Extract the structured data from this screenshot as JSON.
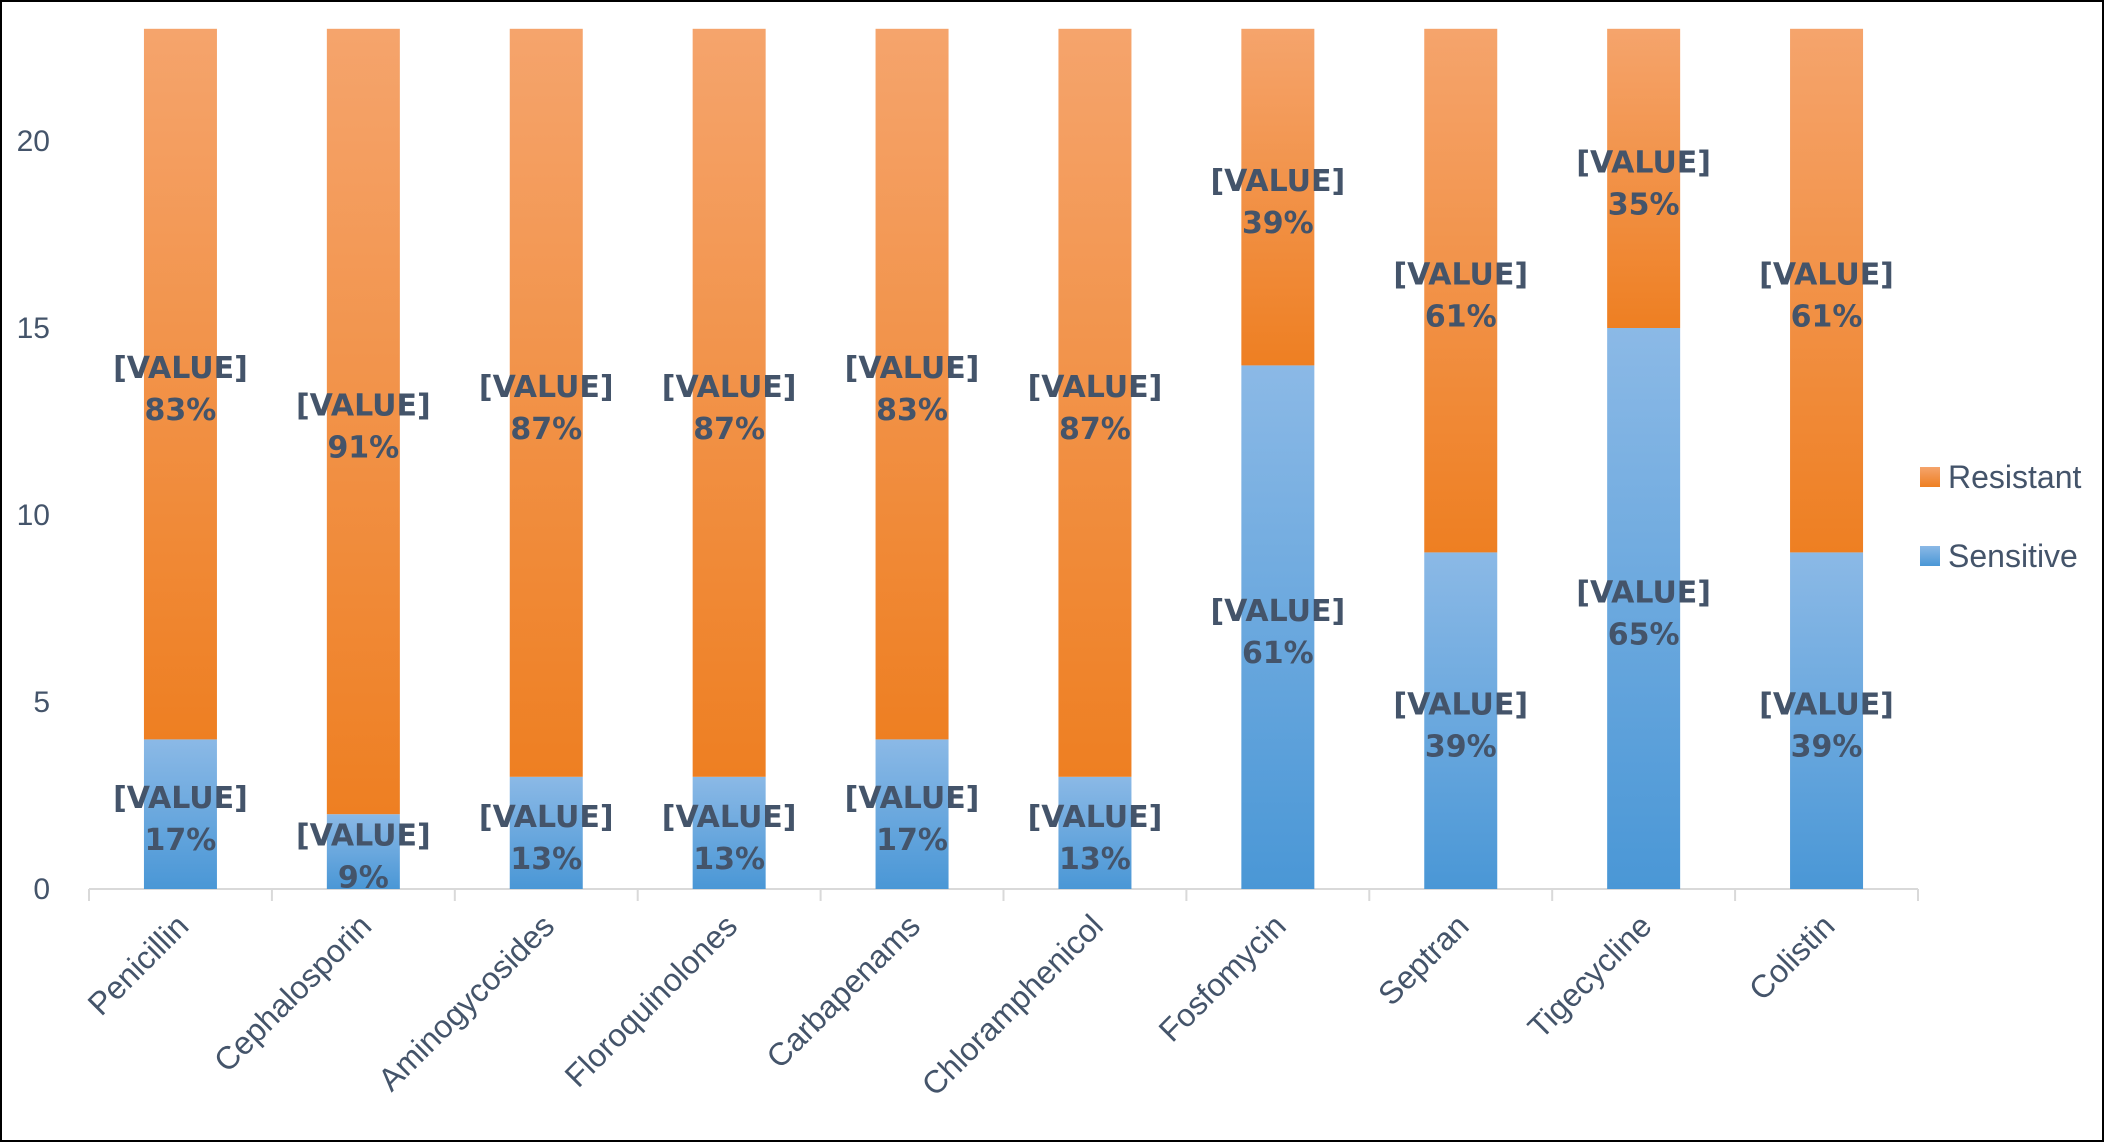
{
  "chart_data": {
    "type": "bar",
    "stacked": true,
    "title": "",
    "xlabel": "",
    "ylabel": "",
    "ylim": [
      0,
      23
    ],
    "yticks": [
      0,
      5,
      10,
      15,
      20
    ],
    "grid": false,
    "legend_position": "right",
    "categories": [
      "Penicillin",
      "Cephalosporin",
      "Aminogycosides",
      "Floroquinolones",
      "Carbapenams",
      "Chloramphenicol",
      "Fosfomycin",
      "Septran",
      "Tigecycline",
      "Colistin"
    ],
    "series": [
      {
        "name": "Sensitive",
        "color": "#5b9bd5",
        "values": [
          4,
          2,
          3,
          3,
          4,
          3,
          14,
          9,
          15,
          9
        ],
        "labels": [
          "[VALUE] 17%",
          "[VALUE] 9%",
          "[VALUE] 13%",
          "[VALUE] 13%",
          "[VALUE] 17%",
          "[VALUE] 13%",
          "[VALUE] 61%",
          "[VALUE] 39%",
          "[VALUE] 65%",
          "[VALUE] 39%"
        ]
      },
      {
        "name": "Resistant",
        "color": "#ed7d31",
        "values": [
          19,
          21,
          20,
          20,
          19,
          20,
          9,
          14,
          8,
          14
        ],
        "labels": [
          "[VALUE] 83%",
          "[VALUE] 91%",
          "[VALUE] 87%",
          "[VALUE] 87%",
          "[VALUE] 83%",
          "[VALUE] 87%",
          "[VALUE] 39%",
          "[VALUE] 61%",
          "[VALUE] 35%",
          "[VALUE] 61%"
        ]
      }
    ]
  }
}
